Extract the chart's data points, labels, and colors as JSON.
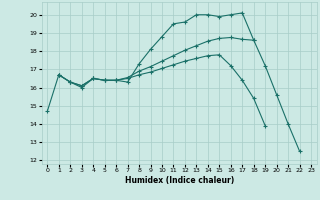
{
  "xlabel": "Humidex (Indice chaleur)",
  "bg_color": "#cce9e4",
  "grid_color": "#a8cdc8",
  "line_color": "#1a7068",
  "xlim": [
    -0.5,
    23.5
  ],
  "ylim": [
    11.8,
    20.7
  ],
  "yticks": [
    12,
    13,
    14,
    15,
    16,
    17,
    18,
    19,
    20
  ],
  "xticks": [
    0,
    1,
    2,
    3,
    4,
    5,
    6,
    7,
    8,
    9,
    10,
    11,
    12,
    13,
    14,
    15,
    16,
    17,
    18,
    19,
    20,
    21,
    22,
    23
  ],
  "series": [
    {
      "x": [
        0,
        1,
        2,
        3,
        4,
        5,
        6,
        7,
        8,
        9,
        10,
        11,
        12,
        13,
        14,
        15,
        16,
        17,
        18,
        19,
        20,
        21,
        22
      ],
      "y": [
        14.7,
        16.7,
        16.3,
        16.0,
        16.5,
        16.4,
        16.4,
        16.3,
        17.3,
        18.1,
        18.8,
        19.5,
        19.6,
        20.0,
        20.0,
        19.9,
        20.0,
        20.1,
        18.6,
        17.2,
        15.6,
        14.0,
        12.5
      ]
    },
    {
      "x": [
        1,
        2,
        3,
        4,
        5,
        6,
        7,
        8,
        9,
        10,
        11,
        12,
        13,
        14,
        15,
        16,
        17,
        18
      ],
      "y": [
        16.7,
        16.3,
        16.1,
        16.5,
        16.4,
        16.4,
        16.55,
        16.9,
        17.15,
        17.45,
        17.75,
        18.05,
        18.3,
        18.55,
        18.7,
        18.75,
        18.65,
        18.6
      ]
    },
    {
      "x": [
        1,
        2,
        3,
        4,
        5,
        6,
        7,
        8,
        9,
        10,
        11,
        12,
        13,
        14,
        15,
        16,
        17,
        18,
        19
      ],
      "y": [
        16.7,
        16.3,
        16.1,
        16.5,
        16.4,
        16.4,
        16.5,
        16.7,
        16.85,
        17.05,
        17.25,
        17.45,
        17.6,
        17.75,
        17.8,
        17.2,
        16.4,
        15.4,
        13.9
      ]
    }
  ]
}
